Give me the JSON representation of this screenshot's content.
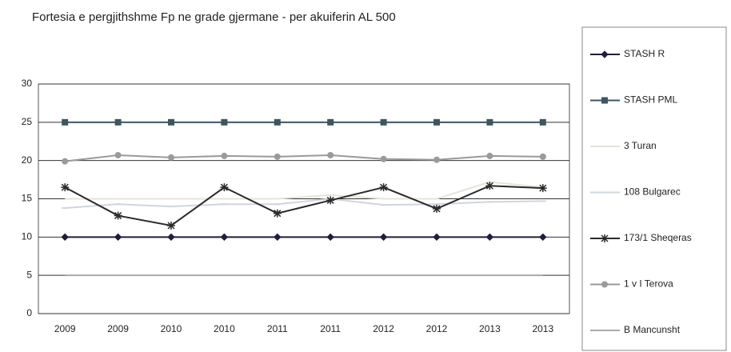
{
  "chart_data": {
    "type": "line",
    "title": "Fortesia e pergjithshme Fp ne grade gjermane - per  akuiferin AL 500",
    "categories": [
      "2009",
      "2009",
      "2010",
      "2010",
      "2011",
      "2011",
      "2012",
      "2012",
      "2013",
      "2013"
    ],
    "ylim": [
      0,
      30
    ],
    "yticks": [
      0,
      5,
      10,
      15,
      20,
      25,
      30
    ],
    "grid": true,
    "legend": "right",
    "series": [
      {
        "name": "STASH R",
        "color": "#1f1f3a",
        "marker": "diamond",
        "values": [
          10,
          10,
          10,
          10,
          10,
          10,
          10,
          10,
          10,
          10
        ]
      },
      {
        "name": "STASH PML",
        "color": "#3d5660",
        "marker": "square",
        "values": [
          25,
          25,
          25,
          25,
          25,
          25,
          25,
          25,
          25,
          25
        ]
      },
      {
        "name": "3 Turan",
        "color": "#e4e4d8",
        "marker": "none",
        "values": [
          15,
          15,
          15,
          15,
          15,
          15.5,
          15,
          15,
          17.2,
          16.5
        ]
      },
      {
        "name": "108 Bulgarec",
        "color": "#cfd6dc",
        "marker": "dash",
        "values": [
          13.8,
          14.3,
          14,
          14.3,
          14.3,
          15,
          14.2,
          14.3,
          14.6,
          14.7
        ]
      },
      {
        "name": "173/1 Sheqeras",
        "color": "#2a2a2a",
        "marker": "star",
        "values": [
          16.5,
          12.8,
          11.5,
          16.5,
          13.1,
          14.8,
          16.5,
          13.7,
          16.7,
          16.4
        ]
      },
      {
        "name": "1 v I Terova",
        "color": "#9a9a9a",
        "marker": "circle",
        "values": [
          19.9,
          20.7,
          20.4,
          20.6,
          20.5,
          20.7,
          20.2,
          20.1,
          20.6,
          20.5
        ]
      },
      {
        "name": "B Mancunsht",
        "color": "#aaaaaa",
        "marker": "none",
        "values": [
          5,
          5,
          5,
          5,
          5,
          5,
          5,
          5,
          5,
          5
        ]
      }
    ]
  }
}
